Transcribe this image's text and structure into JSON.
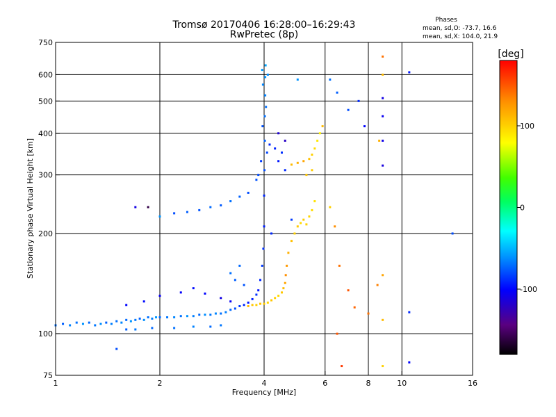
{
  "chart_data": {
    "type": "scatter",
    "title": "Tromsø 20170406 16:28:00–16:29:43",
    "subtitle": "RwPretec (8p)",
    "xlabel": "Frequency [MHz]",
    "ylabel": "Stationary phase Virtual Height [km]",
    "x_scale": "log",
    "y_scale": "log",
    "xlim": [
      1,
      16
    ],
    "ylim": [
      75,
      750
    ],
    "x_ticks": [
      {
        "value": 1,
        "label": "1"
      },
      {
        "value": 2,
        "label": "2"
      },
      {
        "value": 4,
        "label": "4"
      },
      {
        "value": 6,
        "label": "6"
      },
      {
        "value": 8,
        "label": "8"
      },
      {
        "value": 10,
        "label": "10"
      },
      {
        "value": 16,
        "label": "16"
      }
    ],
    "y_ticks": [
      {
        "value": 75,
        "label": "75"
      },
      {
        "value": 100,
        "label": "100"
      },
      {
        "value": 200,
        "label": "200"
      },
      {
        "value": 300,
        "label": "300"
      },
      {
        "value": 400,
        "label": "400"
      },
      {
        "value": 500,
        "label": "500"
      },
      {
        "value": 600,
        "label": "600"
      },
      {
        "value": 750,
        "label": "750"
      }
    ],
    "x_gridlines": [
      2,
      4,
      6,
      8,
      10
    ],
    "y_gridlines": [
      100,
      200,
      300,
      400,
      500,
      600
    ],
    "grid": true,
    "phase_stats": {
      "heading": "Phases",
      "line_o": "mean, sd,O: -73.7, 16.6",
      "line_x": "mean, sd,X: 104.0, 21.9"
    },
    "colorbar": {
      "label": "[deg]",
      "range": [
        -180,
        180
      ],
      "ticks": [
        {
          "value": 100,
          "label": "100"
        },
        {
          "value": 0,
          "label": "0"
        },
        {
          "value": -100,
          "label": "-100"
        }
      ],
      "colors": [
        "#000000",
        "#5a0080",
        "#0000ff",
        "#0090ff",
        "#00ffff",
        "#00ff60",
        "#40ff00",
        "#ffff00",
        "#ff9000",
        "#ff0000"
      ]
    },
    "series": [
      {
        "points": [
          [
            1.0,
            106,
            -70
          ],
          [
            1.05,
            107,
            -75
          ],
          [
            1.1,
            106,
            -65
          ],
          [
            1.15,
            108,
            -70
          ],
          [
            1.2,
            107,
            -60
          ],
          [
            1.25,
            108,
            -72
          ],
          [
            1.3,
            106,
            -68
          ],
          [
            1.35,
            107,
            -62
          ],
          [
            1.4,
            108,
            -75
          ],
          [
            1.45,
            107,
            -66
          ],
          [
            1.5,
            109,
            -70
          ],
          [
            1.55,
            108,
            -64
          ],
          [
            1.6,
            110,
            -72
          ],
          [
            1.65,
            109,
            -60
          ],
          [
            1.7,
            110,
            -68
          ],
          [
            1.75,
            111,
            -74
          ],
          [
            1.8,
            110,
            -62
          ],
          [
            1.85,
            112,
            -70
          ],
          [
            1.9,
            111,
            -66
          ],
          [
            1.95,
            112,
            -58
          ],
          [
            2.0,
            112,
            -72
          ],
          [
            2.1,
            112,
            -68
          ],
          [
            2.2,
            112,
            -64
          ],
          [
            2.3,
            113,
            -70
          ],
          [
            2.4,
            113,
            -60
          ],
          [
            2.5,
            113,
            -66
          ],
          [
            2.6,
            114,
            -72
          ],
          [
            2.7,
            114,
            -62
          ],
          [
            2.8,
            114,
            -68
          ],
          [
            2.9,
            115,
            -64
          ],
          [
            3.0,
            115,
            -70
          ],
          [
            3.1,
            116,
            -66
          ],
          [
            3.2,
            118,
            -72
          ],
          [
            3.3,
            119,
            -80
          ],
          [
            3.4,
            121,
            -85
          ],
          [
            3.5,
            122,
            -90
          ],
          [
            3.6,
            124,
            -95
          ],
          [
            3.7,
            127,
            -92
          ],
          [
            3.8,
            131,
            -88
          ],
          [
            3.85,
            135,
            -95
          ],
          [
            3.9,
            145,
            -90
          ],
          [
            3.95,
            160,
            -85
          ],
          [
            3.98,
            180,
            -88
          ],
          [
            4.0,
            210,
            -92
          ],
          [
            4.0,
            260,
            -90
          ],
          [
            4.01,
            310,
            -80
          ],
          [
            4.02,
            380,
            -75
          ],
          [
            4.02,
            450,
            -70
          ],
          [
            4.03,
            520,
            -65
          ],
          [
            4.03,
            590,
            -60
          ],
          [
            4.04,
            640,
            -55
          ],
          [
            3.95,
            620,
            -58
          ],
          [
            4.1,
            600,
            -62
          ],
          [
            3.97,
            560,
            -64
          ],
          [
            4.05,
            480,
            -70
          ],
          [
            3.96,
            420,
            -78
          ],
          [
            4.08,
            350,
            -82
          ],
          [
            3.92,
            330,
            -85
          ],
          [
            4.15,
            370,
            -90
          ],
          [
            4.3,
            360,
            -92
          ],
          [
            4.5,
            350,
            -88
          ],
          [
            4.4,
            330,
            -95
          ],
          [
            4.6,
            310,
            -90
          ],
          [
            3.85,
            300,
            -80
          ],
          [
            3.8,
            290,
            -78
          ],
          [
            1.6,
            103,
            -75
          ],
          [
            1.7,
            103,
            -68
          ],
          [
            1.9,
            104,
            -72
          ],
          [
            2.2,
            104,
            -70
          ],
          [
            2.5,
            105,
            -65
          ],
          [
            2.8,
            105,
            -72
          ],
          [
            3.0,
            106,
            -68
          ],
          [
            1.6,
            122,
            -100
          ],
          [
            1.8,
            125,
            -98
          ],
          [
            2.0,
            130,
            -105
          ],
          [
            2.3,
            133,
            -102
          ],
          [
            2.5,
            137,
            -98
          ],
          [
            2.7,
            132,
            -100
          ],
          [
            3.0,
            128,
            -110
          ],
          [
            3.2,
            125,
            -105
          ],
          [
            2.2,
            230,
            -80
          ],
          [
            2.4,
            232,
            -75
          ],
          [
            2.6,
            235,
            -78
          ],
          [
            2.8,
            240,
            -72
          ],
          [
            3.0,
            243,
            -76
          ],
          [
            3.2,
            250,
            -70
          ],
          [
            3.4,
            258,
            -74
          ],
          [
            3.6,
            265,
            -80
          ],
          [
            3.3,
            145,
            -75
          ],
          [
            3.5,
            140,
            -78
          ],
          [
            3.2,
            152,
            -70
          ],
          [
            3.4,
            160,
            -72
          ]
        ]
      },
      {
        "points": [
          [
            3.6,
            121,
            110
          ],
          [
            3.7,
            122,
            105
          ],
          [
            3.8,
            122,
            100
          ],
          [
            3.9,
            123,
            108
          ],
          [
            4.0,
            123,
            102
          ],
          [
            4.1,
            124,
            98
          ],
          [
            4.2,
            126,
            105
          ],
          [
            4.3,
            128,
            100
          ],
          [
            4.4,
            130,
            96
          ],
          [
            4.5,
            133,
            104
          ],
          [
            4.55,
            137,
            110
          ],
          [
            4.6,
            142,
            120
          ],
          [
            4.62,
            150,
            130
          ],
          [
            4.65,
            160,
            125
          ],
          [
            4.7,
            175,
            115
          ],
          [
            4.8,
            190,
            108
          ],
          [
            4.9,
            200,
            100
          ],
          [
            5.0,
            210,
            104
          ],
          [
            5.1,
            215,
            96
          ],
          [
            5.2,
            220,
            102
          ],
          [
            5.3,
            213,
            100
          ],
          [
            5.4,
            225,
            98
          ],
          [
            5.5,
            235,
            95
          ],
          [
            5.6,
            250,
            92
          ],
          [
            5.3,
            300,
            105
          ],
          [
            5.5,
            310,
            102
          ],
          [
            4.8,
            322,
            110
          ],
          [
            5.0,
            326,
            115
          ],
          [
            5.2,
            330,
            120
          ],
          [
            5.4,
            335,
            108
          ],
          [
            5.5,
            345,
            100
          ],
          [
            5.6,
            360,
            95
          ],
          [
            5.7,
            380,
            90
          ],
          [
            5.8,
            400,
            85
          ],
          [
            5.9,
            420,
            110
          ],
          [
            6.2,
            240,
            100
          ],
          [
            6.4,
            210,
            130
          ],
          [
            6.6,
            160,
            140
          ],
          [
            6.5,
            100,
            150
          ],
          [
            6.7,
            80,
            160
          ],
          [
            7.0,
            135,
            150
          ],
          [
            7.3,
            120,
            145
          ],
          [
            8.0,
            115,
            140
          ],
          [
            8.5,
            140,
            135
          ],
          [
            8.8,
            150,
            120
          ],
          [
            8.8,
            110,
            110
          ],
          [
            8.8,
            80,
            100
          ],
          [
            8.8,
            600,
            110
          ],
          [
            8.8,
            680,
            140
          ],
          [
            8.6,
            380,
            115
          ]
        ]
      },
      {
        "points": [
          [
            1.5,
            90,
            -80
          ],
          [
            1.7,
            240,
            -110
          ],
          [
            1.85,
            240,
            -160
          ],
          [
            2.0,
            225,
            -60
          ],
          [
            7.5,
            500,
            -90
          ],
          [
            7.8,
            420,
            -100
          ],
          [
            8.8,
            510,
            -110
          ],
          [
            8.8,
            450,
            -105
          ],
          [
            8.8,
            380,
            -108
          ],
          [
            8.8,
            320,
            -112
          ],
          [
            10.5,
            610,
            -95
          ],
          [
            10.5,
            82,
            -100
          ],
          [
            10.5,
            116,
            -90
          ],
          [
            14.0,
            200,
            -80
          ],
          [
            6.2,
            580,
            -70
          ],
          [
            6.5,
            530,
            -75
          ],
          [
            7.0,
            470,
            -80
          ],
          [
            5.0,
            580,
            -60
          ],
          [
            4.8,
            220,
            -85
          ],
          [
            4.2,
            200,
            -90
          ],
          [
            4.4,
            400,
            -115
          ],
          [
            4.6,
            380,
            -120
          ]
        ]
      }
    ]
  }
}
